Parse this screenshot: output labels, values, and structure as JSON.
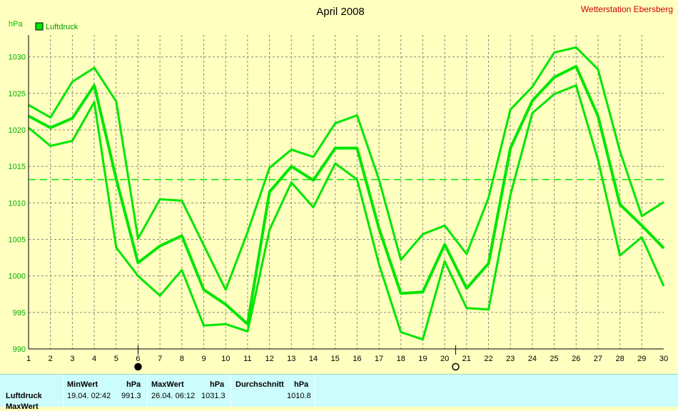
{
  "chart_data": {
    "type": "line",
    "title": "April 2008",
    "station": "Wetterstation Ebersberg",
    "ylabel": "hPa",
    "legend": {
      "label": "Luftdruck",
      "placement": "top-left"
    },
    "x": [
      1,
      2,
      3,
      4,
      5,
      6,
      7,
      8,
      9,
      10,
      11,
      12,
      13,
      14,
      15,
      16,
      17,
      18,
      19,
      20,
      21,
      22,
      23,
      24,
      25,
      26,
      27,
      28,
      29,
      30
    ],
    "xlim": [
      1,
      30
    ],
    "ylim": [
      990,
      1033
    ],
    "yticks": [
      990,
      995,
      1000,
      1005,
      1010,
      1015,
      1020,
      1025,
      1030
    ],
    "grid": true,
    "color": "#00e600",
    "series": [
      {
        "name": "Luftdruck",
        "role": "max",
        "values": [
          1023.4,
          1021.7,
          1026.6,
          1028.5,
          1023.9,
          1005.1,
          1010.5,
          1010.3,
          1004.2,
          998.1,
          1006.0,
          1014.8,
          1017.3,
          1016.3,
          1020.9,
          1022.0,
          1013.2,
          1002.2,
          1005.7,
          1006.9,
          1003.0,
          1010.7,
          1022.8,
          1025.9,
          1030.6,
          1031.3,
          1028.3,
          1017.1,
          1008.2,
          1010.1
        ]
      },
      {
        "name": "Luftdruck",
        "role": "mean",
        "values": [
          1021.9,
          1020.3,
          1021.6,
          1026.1,
          1013.3,
          1001.8,
          1004.1,
          1005.5,
          998.1,
          996.1,
          993.4,
          1011.5,
          1015.0,
          1013.1,
          1017.5,
          1017.5,
          1006.5,
          997.6,
          997.8,
          1004.3,
          998.3,
          1001.7,
          1017.5,
          1024.0,
          1027.2,
          1028.7,
          1021.9,
          1009.8,
          1006.9,
          1003.8
        ]
      },
      {
        "name": "Luftdruck",
        "role": "min",
        "values": [
          1020.3,
          1017.8,
          1018.5,
          1023.8,
          1003.9,
          1000.0,
          997.3,
          1000.8,
          993.2,
          993.4,
          992.4,
          1006.3,
          1012.8,
          1009.4,
          1015.4,
          1013.2,
          1001.6,
          992.3,
          991.3,
          1002.0,
          995.6,
          995.4,
          1011.1,
          1022.3,
          1024.9,
          1026.1,
          1015.9,
          1002.8,
          1005.3,
          998.6
        ]
      }
    ],
    "average_line": 1013.2,
    "moon_phases": [
      {
        "day": 6.0,
        "phase": "new"
      },
      {
        "day": 20.5,
        "phase": "full"
      }
    ]
  },
  "stats": {
    "row_label": "Luftdruck",
    "row_label_cut": "MaxWert",
    "min_header": "MinWert",
    "max_header": "MaxWert",
    "avg_header": "Durchschnitt",
    "unit": "hPa",
    "min_time": "19.04.  02:42",
    "min_value": "991.3",
    "max_time": "26.04.  06:12",
    "max_value": "1031.3",
    "avg_value": "1010.8"
  }
}
